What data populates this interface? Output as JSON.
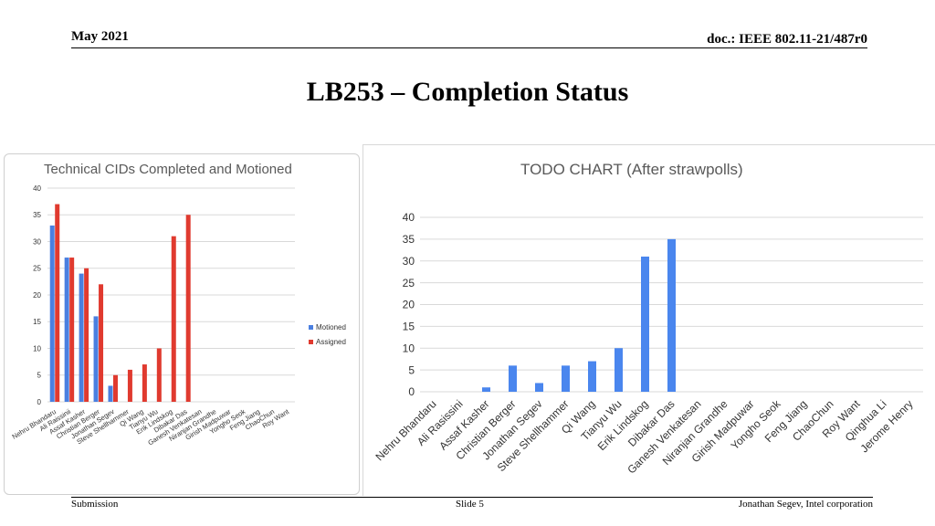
{
  "header": {
    "date": "May 2021",
    "doc_id": "doc.: IEEE 802.11-21/487r0"
  },
  "slide_title": "LB253 – Completion Status",
  "footer": {
    "left": "Submission",
    "center": "Slide 5",
    "right": "Jonathan Segev, Intel corporation"
  },
  "colors": {
    "motioned": "#4a7fe0",
    "assigned": "#e03a2f",
    "todo": "#4a86ee",
    "grid": "#d9d9d9"
  },
  "chart_data": [
    {
      "type": "bar",
      "title": "Technical CIDs Completed and Motioned",
      "categories": [
        "Nehru Bhandaru",
        "Ali Raissinii",
        "Assaf Kasher",
        "Christian Berger",
        "Jonathan Segev",
        "Steve Shellhammer",
        "Qi Wang",
        "Tianyu Wu",
        "Erik Lindskog",
        "Dibakar Das",
        "Ganesh Venkatesan",
        "Niranjan Grandhe",
        "Girish Madpuwar",
        "Yongho Seok",
        "Feng Jiang",
        "ChaoChun",
        "Roy Want"
      ],
      "series": [
        {
          "name": "Motioned",
          "values": [
            33,
            27,
            24,
            16,
            3,
            0,
            0,
            0,
            0,
            0,
            0,
            0,
            0,
            0,
            0,
            0,
            0
          ]
        },
        {
          "name": "Assigned",
          "values": [
            37,
            27,
            25,
            22,
            5,
            6,
            7,
            10,
            31,
            35,
            0,
            0,
            0,
            0,
            0,
            0,
            0
          ]
        }
      ],
      "yticks": [
        "0",
        "5",
        "10",
        "15",
        "20",
        "25",
        "30",
        "35",
        "40"
      ],
      "ylim": [
        0,
        40
      ],
      "legend": "right"
    },
    {
      "type": "bar",
      "title": "TODO CHART (After strawpolls)",
      "categories": [
        "Nehru Bhandaru",
        "Ali Rasissini",
        "Assaf Kasher",
        "Christian Berger",
        "Jonathan Segev",
        "Steve Shellhammer",
        "Qi Wang",
        "Tianyu Wu",
        "Erik Lindskog",
        "Dibakar Das",
        "Ganesh Venkatesan",
        "Niranjan Grandhe",
        "Girish Madpuwar",
        "Yongho Seok",
        "Feng Jiang",
        "ChaoChun",
        "Roy Want",
        "Qinghua Li",
        "Jerome Henry"
      ],
      "values": [
        0,
        0,
        1,
        6,
        2,
        6,
        7,
        10,
        31,
        35,
        0,
        0,
        0,
        0,
        0,
        0,
        0,
        0,
        0
      ],
      "yticks": [
        "0",
        "5",
        "10",
        "15",
        "20",
        "25",
        "30",
        "35",
        "40"
      ],
      "ylim": [
        0,
        40
      ],
      "legend": "none"
    }
  ]
}
